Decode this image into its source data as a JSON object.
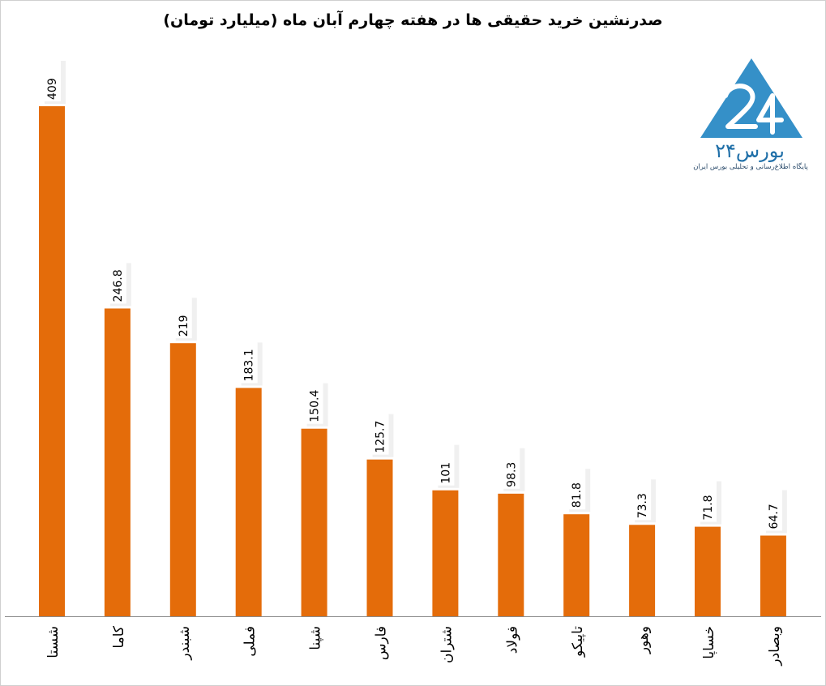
{
  "chart_data": {
    "type": "bar",
    "title": "صدرنشین خرید حقیقی ها در هفته چهارم آبان ماه (میلیارد تومان)",
    "categories": [
      "شستا",
      "کاما",
      "شبندر",
      "فملی",
      "شپنا",
      "فارس",
      "شتران",
      "فولاد",
      "تاپیکو",
      "وهور",
      "خساپا",
      "وبصادر"
    ],
    "values": [
      409,
      246.8,
      219,
      183.1,
      150.4,
      125.7,
      101,
      98.3,
      81.8,
      73.3,
      71.8,
      64.7
    ],
    "value_labels": [
      "409",
      "246.8",
      "219",
      "183.1",
      "150.4",
      "125.7",
      "101",
      "98.3",
      "81.8",
      "73.3",
      "71.8",
      "64.7"
    ],
    "xlabel": "",
    "ylabel": "",
    "ylim": [
      0,
      409
    ],
    "bar_color": "#e46c0a",
    "grid": false,
    "legend": "none"
  },
  "logo": {
    "name": "بورس۲۴",
    "tagline": "پایگاه اطلاع‌رسانی و تحلیلی بورس ایران",
    "color": "#3590c8"
  }
}
